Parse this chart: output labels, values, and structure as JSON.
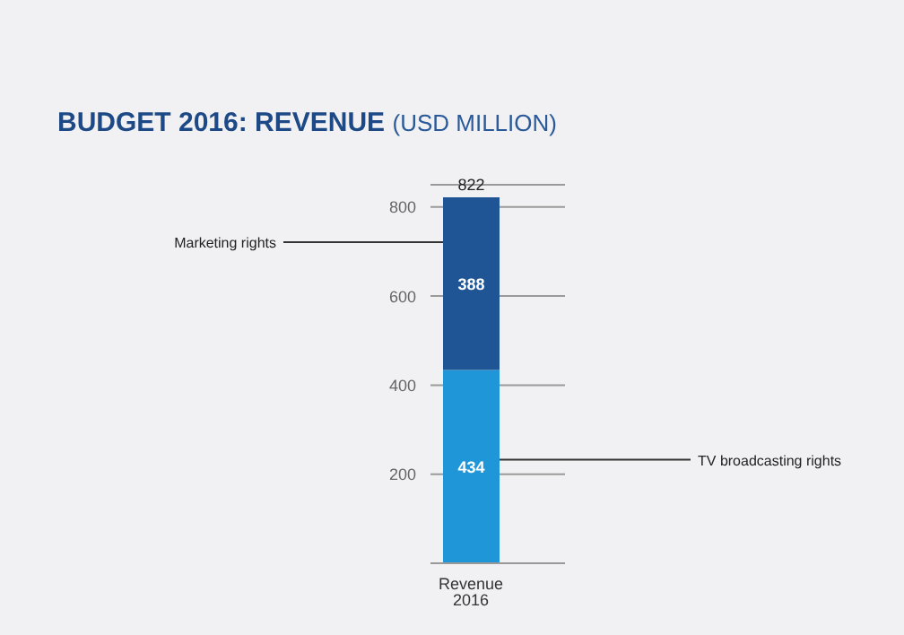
{
  "chart_data": {
    "type": "bar",
    "title": "BUDGET 2016: REVENUE",
    "subtitle": "(USD MILLION)",
    "categories": [
      "Revenue 2016"
    ],
    "stacked": true,
    "series": [
      {
        "name": "TV broadcasting rights",
        "color": "#1e96d8",
        "values": [
          434
        ]
      },
      {
        "name": "Marketing rights",
        "color": "#1f5594",
        "values": [
          388
        ]
      }
    ],
    "ylim": [
      0,
      850
    ],
    "yticks": [
      200,
      400,
      600,
      800
    ],
    "grid": "y",
    "data_labels": true,
    "totals": [
      "822"
    ],
    "legend": false
  }
}
